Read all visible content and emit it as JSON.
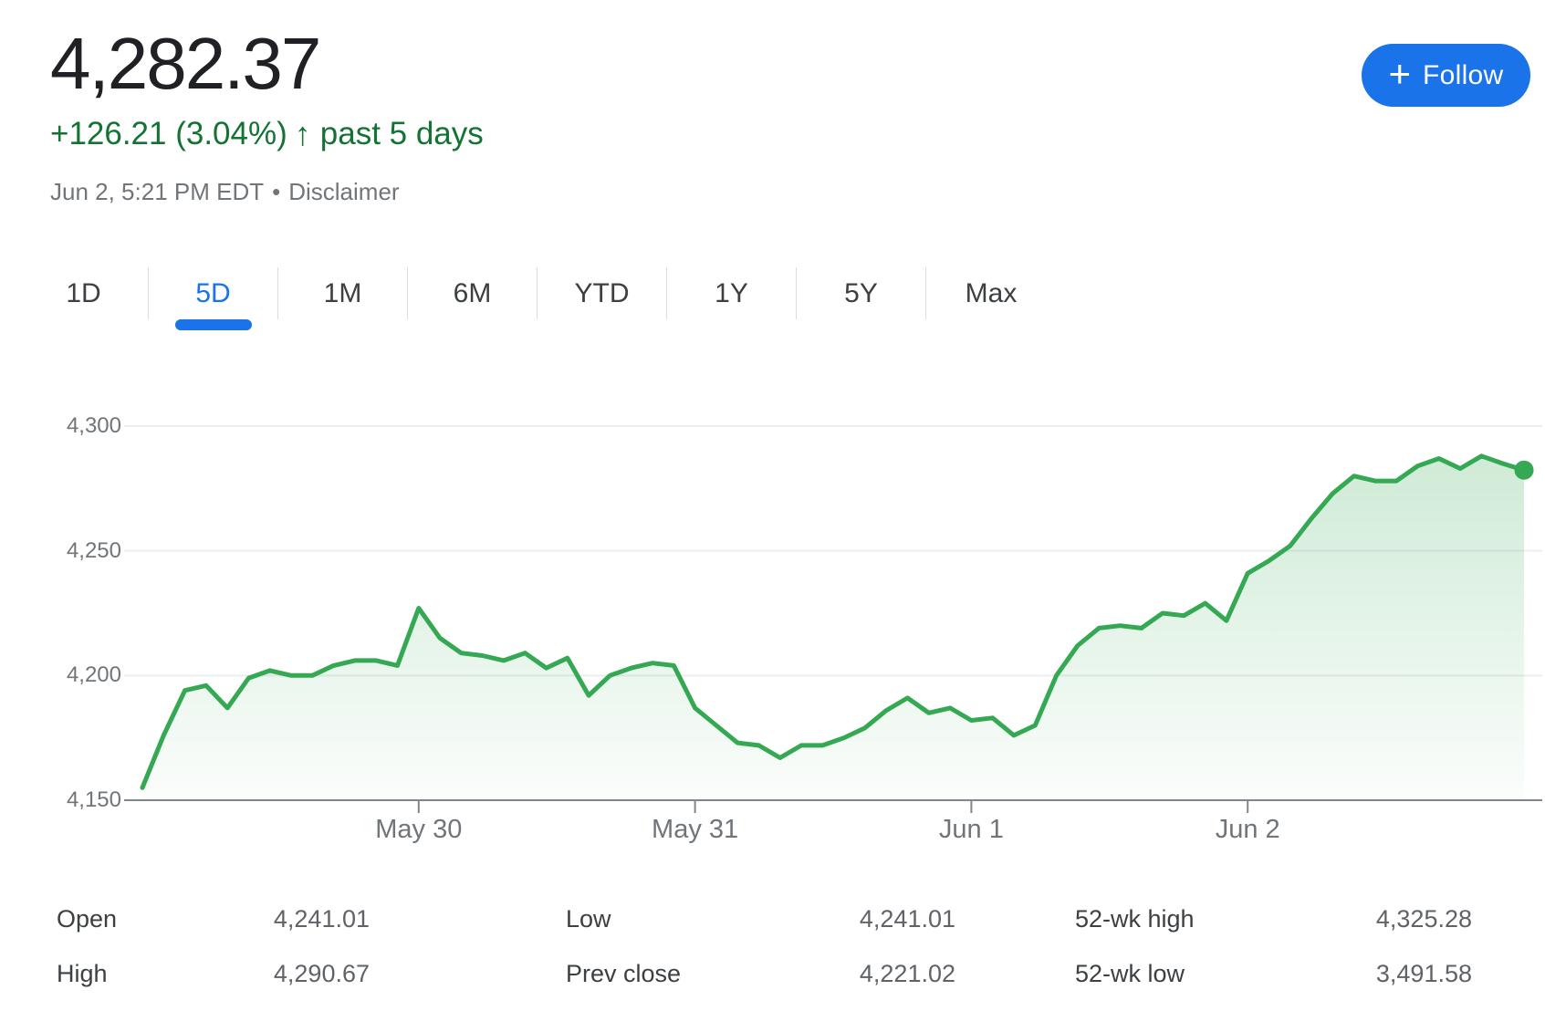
{
  "header": {
    "price": "4,282.37",
    "change": "+126.21 (3.04%)",
    "arrow": "↑",
    "period_label": "past 5 days",
    "timestamp": "Jun 2, 5:21 PM EDT",
    "separator": "•",
    "disclaimer": "Disclaimer",
    "follow": {
      "plus": "+",
      "label": "Follow"
    }
  },
  "tabs": {
    "items": [
      {
        "id": "1d",
        "label": "1D",
        "selected": false
      },
      {
        "id": "5d",
        "label": "5D",
        "selected": true
      },
      {
        "id": "1m",
        "label": "1M",
        "selected": false
      },
      {
        "id": "6m",
        "label": "6M",
        "selected": false
      },
      {
        "id": "ytd",
        "label": "YTD",
        "selected": false
      },
      {
        "id": "1y",
        "label": "1Y",
        "selected": false
      },
      {
        "id": "5y",
        "label": "5Y",
        "selected": false
      },
      {
        "id": "max",
        "label": "Max",
        "selected": false
      }
    ]
  },
  "chart_data": {
    "type": "area",
    "ylim": [
      4150,
      4300
    ],
    "y_ticks": [
      {
        "value": 4300,
        "label": "4,300"
      },
      {
        "value": 4250,
        "label": "4,250"
      },
      {
        "value": 4200,
        "label": "4,200"
      },
      {
        "value": 4150,
        "label": "4,150"
      }
    ],
    "x_ticks": [
      {
        "index": 13,
        "label": "May 30"
      },
      {
        "index": 26,
        "label": "May 31"
      },
      {
        "index": 39,
        "label": "Jun 1"
      },
      {
        "index": 52,
        "label": "Jun 2"
      }
    ],
    "points_per_day": 13,
    "grid": true,
    "line_color": "#34a853",
    "values": [
      4155,
      4176,
      4194,
      4196,
      4187,
      4199,
      4202,
      4200,
      4200,
      4204,
      4206,
      4206,
      4204,
      4227,
      4215,
      4209,
      4208,
      4206,
      4209,
      4203,
      4207,
      4192,
      4200,
      4203,
      4205,
      4204,
      4187,
      4180,
      4173,
      4172,
      4167,
      4172,
      4172,
      4175,
      4179,
      4186,
      4191,
      4185,
      4187,
      4182,
      4183,
      4176,
      4180,
      4200,
      4212,
      4219,
      4220,
      4219,
      4225,
      4224,
      4229,
      4222,
      4241,
      4246,
      4252,
      4263,
      4273,
      4280,
      4278,
      4278,
      4284,
      4287,
      4283,
      4288,
      4285,
      4282.37
    ],
    "last_value": 4282.37
  },
  "stats": {
    "columns": [
      {
        "rows": [
          {
            "id": "open",
            "label": "Open",
            "value": "4,241.01"
          },
          {
            "id": "high",
            "label": "High",
            "value": "4,290.67"
          }
        ]
      },
      {
        "rows": [
          {
            "id": "low",
            "label": "Low",
            "value": "4,241.01"
          },
          {
            "id": "prev-close",
            "label": "Prev close",
            "value": "4,221.02"
          }
        ]
      },
      {
        "rows": [
          {
            "id": "52wk-high",
            "label": "52-wk high",
            "value": "4,325.28"
          },
          {
            "id": "52wk-low",
            "label": "52-wk low",
            "value": "3,491.58"
          }
        ]
      }
    ]
  },
  "colors": {
    "accent_blue": "#1a73e8",
    "green_text": "#137333",
    "line_green": "#34a853",
    "axis_gray": "#80868b",
    "gridline_gray": "#ebedef",
    "divider_gray": "#dadce0"
  }
}
